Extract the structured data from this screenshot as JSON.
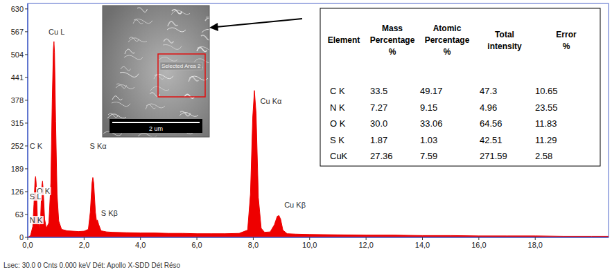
{
  "chart_data": {
    "type": "area",
    "color": "#ee0000",
    "grid": false,
    "xlim": [
      0,
      20.6
    ],
    "ylim": [
      0,
      645
    ],
    "xticks": [
      {
        "value": 0,
        "label": "0,0"
      },
      {
        "value": 2,
        "label": "2,0"
      },
      {
        "value": 4,
        "label": "4,0"
      },
      {
        "value": 6,
        "label": "6,0"
      },
      {
        "value": 8,
        "label": "8,0"
      },
      {
        "value": 10,
        "label": "10,0"
      },
      {
        "value": 12,
        "label": "12,0"
      },
      {
        "value": 14,
        "label": "14,0"
      },
      {
        "value": 16,
        "label": "16,0"
      },
      {
        "value": 18,
        "label": "18,0"
      }
    ],
    "yticks": [
      0,
      63,
      126,
      189,
      252,
      315,
      378,
      441,
      504,
      567,
      630
    ],
    "x": [
      0.0,
      0.1,
      0.18,
      0.22,
      0.26,
      0.28,
      0.3,
      0.34,
      0.37,
      0.39,
      0.42,
      0.46,
      0.5,
      0.525,
      0.55,
      0.6,
      0.66,
      0.75,
      0.82,
      0.87,
      0.91,
      0.93,
      0.95,
      0.99,
      1.04,
      1.1,
      1.2,
      1.4,
      1.6,
      1.8,
      2.0,
      2.15,
      2.22,
      2.28,
      2.31,
      2.34,
      2.4,
      2.44,
      2.47,
      2.52,
      2.6,
      2.8,
      3.0,
      3.5,
      4.0,
      4.5,
      5.0,
      5.5,
      6.0,
      6.5,
      7.0,
      7.5,
      7.8,
      7.9,
      7.98,
      8.04,
      8.1,
      8.18,
      8.28,
      8.4,
      8.6,
      8.75,
      8.85,
      8.91,
      8.97,
      9.05,
      9.2,
      9.5,
      10.0,
      11,
      12,
      13,
      14,
      15,
      16,
      17,
      18,
      19,
      20,
      20.6
    ],
    "values": [
      0,
      5,
      30,
      90,
      160,
      168,
      150,
      60,
      30,
      38,
      25,
      60,
      140,
      155,
      130,
      50,
      25,
      40,
      150,
      380,
      520,
      540,
      510,
      320,
      120,
      45,
      22,
      18,
      17,
      16,
      17,
      22,
      70,
      150,
      165,
      150,
      70,
      45,
      48,
      35,
      18,
      15,
      14,
      13,
      12,
      12,
      11,
      11,
      10,
      10,
      10,
      11,
      20,
      120,
      330,
      405,
      340,
      110,
      25,
      14,
      15,
      35,
      58,
      60,
      50,
      20,
      10,
      9,
      8,
      7,
      6,
      6,
      5,
      5,
      4,
      4,
      4,
      3,
      3,
      3
    ],
    "annotations": [
      {
        "text": "Cu L",
        "x": 0.74,
        "y": 560
      },
      {
        "text": "C K",
        "x": 0.07,
        "y": 244
      },
      {
        "text": "O K",
        "x": 0.32,
        "y": 120
      },
      {
        "text": "S L",
        "x": 0.07,
        "y": 105
      },
      {
        "text": "N K",
        "x": 0.07,
        "y": 40
      },
      {
        "text": "S Kα",
        "x": 2.2,
        "y": 244
      },
      {
        "text": "S Kβ",
        "x": 2.6,
        "y": 60
      },
      {
        "text": "Cu Kα",
        "x": 8.25,
        "y": 368
      },
      {
        "text": "Cu Kβ",
        "x": 9.1,
        "y": 82
      }
    ]
  },
  "inset": {
    "label": "Selected Area 2",
    "scale_bar": "2 um"
  },
  "table": {
    "header": [
      "Element",
      "Mass Percentage %",
      "Atomic Percentage %",
      "Total intensity",
      "Error %"
    ],
    "rows": [
      [
        "C K",
        "33.5",
        "49.17",
        "47.3",
        "10.65"
      ],
      [
        "N K",
        "7.27",
        "9.15",
        "4.96",
        "23.55"
      ],
      [
        "O K",
        "30.0",
        "33.06",
        "64.56",
        "11.83"
      ],
      [
        "S K",
        "1.87",
        "1.03",
        "42.51",
        "11.29"
      ],
      [
        "CuK",
        "27.36",
        "7.59",
        "271.59",
        "2.58"
      ]
    ]
  },
  "footer": "Lsec: 30.0 0 Cnts 0.000 keV Dét: Apollo X-SDD Dét Réso"
}
